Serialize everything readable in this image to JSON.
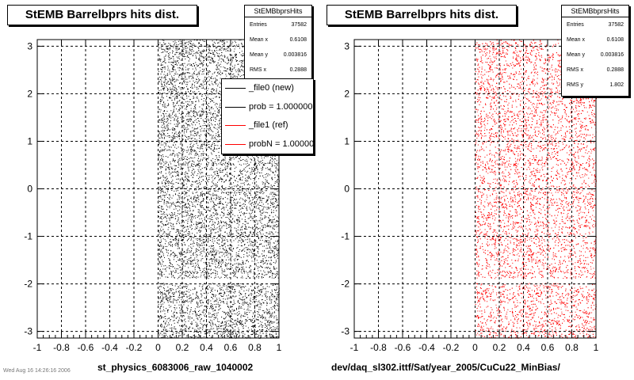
{
  "footer_text": "Wed Aug 16 14:26:16 2006",
  "chart_data": [
    {
      "type": "scatter",
      "title": "StEMB Barrelbprs hits dist.",
      "xlabel": "st_physics_6083006_raw_1040002",
      "ylabel": "",
      "xlim": [
        -1,
        1
      ],
      "ylim": [
        -3.14,
        3.14
      ],
      "xticks": [
        "-1",
        "-0.8",
        "-0.6",
        "-0.4",
        "-0.2",
        "0",
        "0.2",
        "0.4",
        "0.6",
        "0.8",
        "1"
      ],
      "yticks": [
        "-3",
        "-2",
        "-1",
        "0",
        "1",
        "2",
        "3"
      ],
      "grid": true,
      "marker_color": "#000000",
      "filled_region": {
        "x": [
          0,
          1
        ],
        "y": [
          -3.14,
          3.14
        ],
        "gap_y": [
          -1.98,
          -1.88
        ]
      },
      "stats": {
        "name": "StEMBbprsHits",
        "rows": [
          {
            "label": "Entries",
            "value": "37582"
          },
          {
            "label": "Mean x",
            "value": "0.6108"
          },
          {
            "label": "Mean y",
            "value": "0.003816"
          },
          {
            "label": "RMS x",
            "value": "0.2888"
          }
        ]
      },
      "legend": {
        "placement": "top-right",
        "entries": [
          {
            "label": "_file0 (new)",
            "color": "#000000"
          },
          {
            "label": "prob = 1.000000",
            "color": "#000000"
          },
          {
            "label": "_file1 (ref)",
            "color": "#ff0000"
          },
          {
            "label": "probN = 1.000000",
            "color": "#ff0000"
          }
        ]
      }
    },
    {
      "type": "scatter",
      "title": "StEMB Barrelbprs hits dist.",
      "xlabel": "dev/daq_sl302.ittf/Sat/year_2005/CuCu22_MinBias/",
      "ylabel": "",
      "xlim": [
        -1,
        1
      ],
      "ylim": [
        -3.14,
        3.14
      ],
      "xticks": [
        "-1",
        "-0.8",
        "-0.6",
        "-0.4",
        "-0.2",
        "0",
        "0.2",
        "0.4",
        "0.6",
        "0.8",
        "1"
      ],
      "yticks": [
        "-3",
        "-2",
        "-1",
        "0",
        "1",
        "2",
        "3"
      ],
      "grid": true,
      "marker_color": "#ff0000",
      "filled_region": {
        "x": [
          0,
          1
        ],
        "y": [
          -3.14,
          3.14
        ],
        "gap_y": [
          -1.98,
          -1.88
        ]
      },
      "stats": {
        "name": "StEMBbprsHits",
        "rows": [
          {
            "label": "Entries",
            "value": "37582"
          },
          {
            "label": "Mean x",
            "value": "0.6108"
          },
          {
            "label": "Mean y",
            "value": "0.003816"
          },
          {
            "label": "RMS x",
            "value": "0.2888"
          },
          {
            "label": "RMS y",
            "value": "1.802"
          }
        ]
      }
    }
  ]
}
